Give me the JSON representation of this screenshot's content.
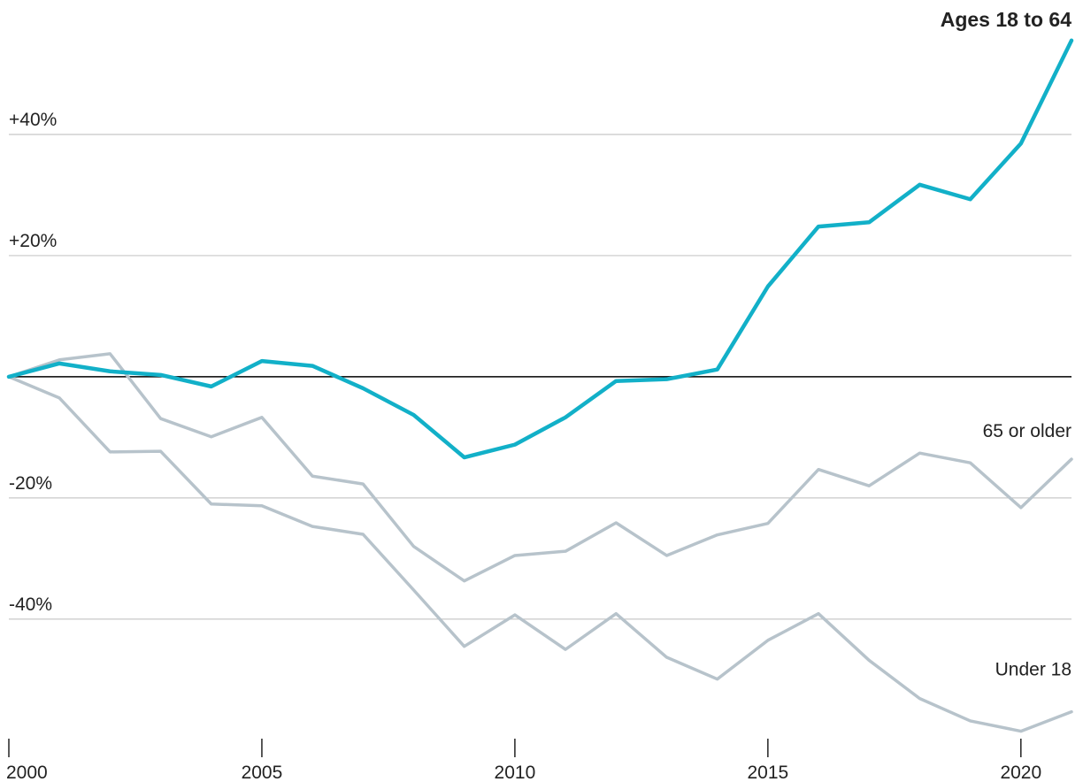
{
  "chart_data": {
    "type": "line",
    "x": [
      2000,
      2001,
      2002,
      2003,
      2004,
      2005,
      2006,
      2007,
      2008,
      2009,
      2010,
      2011,
      2012,
      2013,
      2014,
      2015,
      2016,
      2017,
      2018,
      2019,
      2020,
      2021
    ],
    "series": [
      {
        "name": "Under 18",
        "color": "#b7c3cb",
        "values": [
          0,
          -3.5,
          -12.4,
          -12.3,
          -21.0,
          -21.3,
          -24.7,
          -26.0,
          -35.2,
          -44.5,
          -39.3,
          -45.0,
          -39.1,
          -46.3,
          -49.9,
          -43.5,
          -39.1,
          -46.8,
          -53.1,
          -56.8,
          -58.5,
          -55.3
        ]
      },
      {
        "name": "65 or older",
        "color": "#b7c3cb",
        "values": [
          0,
          2.8,
          3.8,
          -6.9,
          -9.9,
          -6.7,
          -16.4,
          -17.7,
          -28.0,
          -33.7,
          -29.5,
          -28.8,
          -24.1,
          -29.5,
          -26.1,
          -24.2,
          -15.3,
          -18.0,
          -12.6,
          -14.2,
          -21.6,
          -13.6
        ]
      },
      {
        "name": "Ages 18 to 64",
        "color": "#12b0c8",
        "values": [
          0,
          2.2,
          0.9,
          0.3,
          -1.6,
          2.6,
          1.8,
          -1.9,
          -6.3,
          -13.3,
          -11.2,
          -6.7,
          -0.7,
          -0.4,
          1.2,
          14.9,
          24.8,
          25.5,
          31.7,
          29.3,
          38.5,
          55.5
        ]
      }
    ],
    "xlim": [
      2000,
      2021
    ],
    "xticks": [
      2000,
      2005,
      2010,
      2015,
      2020
    ],
    "ylim": [
      -59,
      62
    ],
    "yticks": [
      {
        "value": -40,
        "label": "-40%"
      },
      {
        "value": -20,
        "label": "-20%"
      },
      {
        "value": 20,
        "label": "+20%"
      },
      {
        "value": 40,
        "label": "+40%"
      }
    ],
    "grid": true
  }
}
